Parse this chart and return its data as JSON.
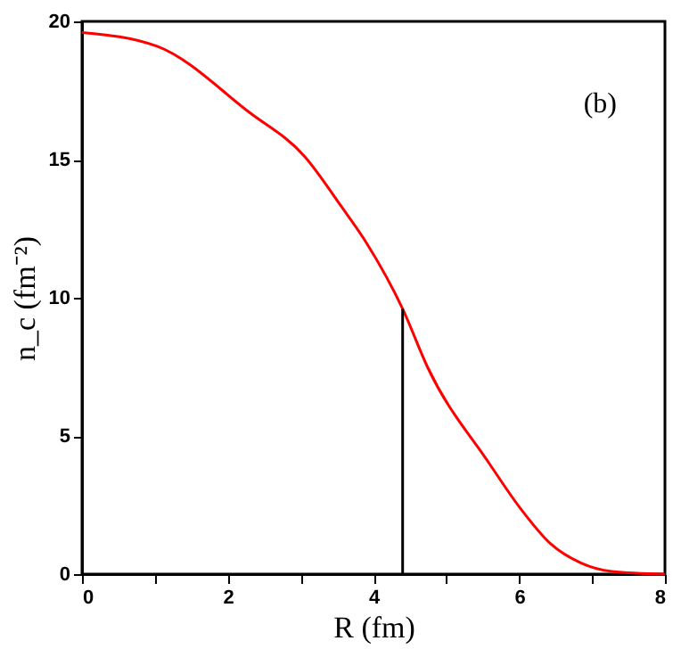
{
  "chart_data": {
    "type": "line",
    "xlabel": "R (fm)",
    "ylabel": "n_c (fm⁻²)",
    "annotations": [
      "(b)"
    ],
    "series": [
      {
        "color": "#ff0000",
        "x": [
          0,
          1.03,
          2.3,
          3.06,
          3.56,
          3.9,
          4.4,
          4.74,
          5.59,
          6.01,
          6.43,
          6.85,
          7.27,
          8
        ],
        "values": [
          19.6,
          19.1,
          16.7,
          15.1,
          13.3,
          12.0,
          9.6,
          7.5,
          4.0,
          2.4,
          1.1,
          0.4,
          0.1,
          0
        ]
      },
      {
        "color": "#000000",
        "x": [
          4.4,
          4.4
        ],
        "values": [
          0,
          9.6
        ]
      }
    ],
    "xlim": [
      0,
      8
    ],
    "ylim": [
      0,
      20
    ],
    "xticks": [
      0,
      {
        "value": 1,
        "label": null
      },
      2,
      {
        "value": 3,
        "label": null
      },
      4,
      {
        "value": 5,
        "label": null
      },
      6,
      {
        "value": 7,
        "label": null
      },
      8
    ],
    "yticks": [
      0,
      5,
      10,
      15,
      20
    ],
    "grid": false,
    "marker": "none",
    "line_style": "solid"
  }
}
